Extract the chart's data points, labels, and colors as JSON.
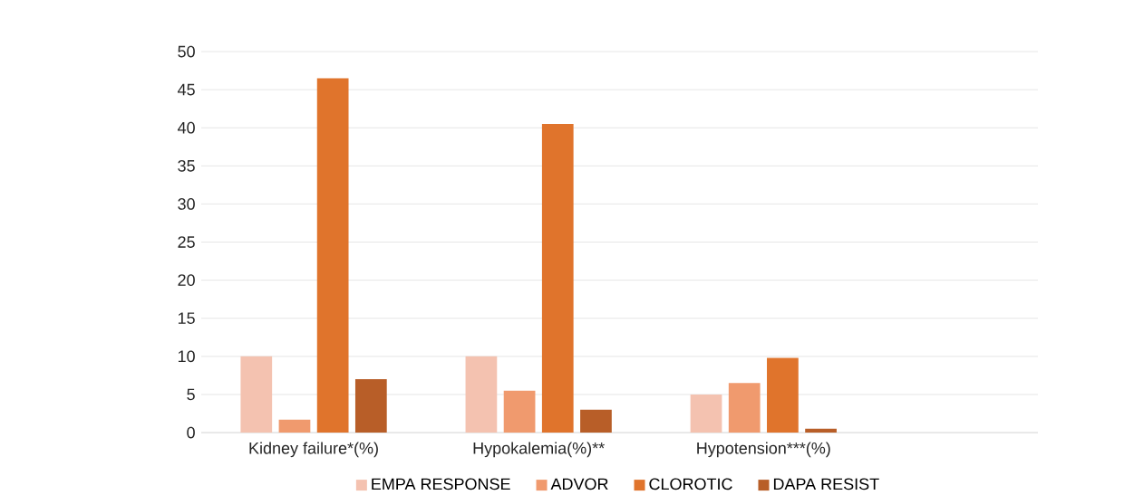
{
  "chart_data": {
    "type": "bar",
    "categories": [
      "Kidney failure*(%)",
      "Hypokalemia(%)**",
      "Hypotension***(%)"
    ],
    "series": [
      {
        "name": "EMPA RESPONSE",
        "color": "#f4c2b0",
        "values": [
          10,
          10,
          5
        ]
      },
      {
        "name": "ADVOR",
        "color": "#f09a6e",
        "values": [
          1.7,
          5.5,
          6.5
        ]
      },
      {
        "name": "CLOROTIC",
        "color": "#e0742c",
        "values": [
          46.5,
          40.5,
          9.8
        ]
      },
      {
        "name": "DAPA RESIST",
        "color": "#b85e28",
        "values": [
          7,
          3,
          0.5
        ]
      }
    ],
    "ylim": [
      0,
      50
    ],
    "yticks": [
      0,
      5,
      10,
      15,
      20,
      25,
      30,
      35,
      40,
      45,
      50
    ],
    "grid": "y",
    "legend": "bottom"
  }
}
